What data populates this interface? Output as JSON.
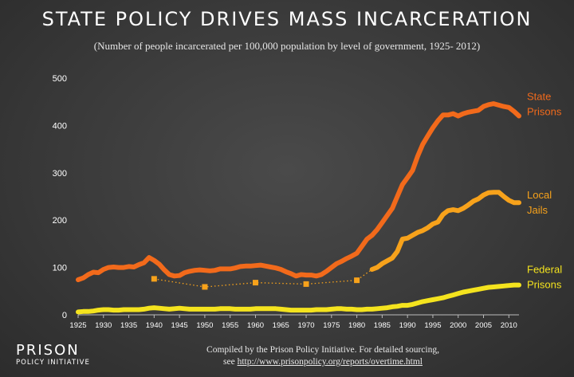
{
  "title": "STATE POLICY DRIVES MASS INCARCERATION",
  "subtitle": "(Number of people incarcerated per 100,000 population by level of government, 1925- 2012)",
  "footer": {
    "line1": "Compiled by the Prison Policy Initiative. For detailed sourcing,",
    "line2_prefix": "see ",
    "url": "http://www.prisonpolicy.org/reports/overtime.html"
  },
  "logo": {
    "line1": "PRISON",
    "line2": "POLICY INITIATIVE"
  },
  "colors": {
    "state": "#f26a1b",
    "local": "#f7a21b",
    "federal": "#f4e31e",
    "text": "#ffffff",
    "axis": "#bbbbbb"
  },
  "chart_data": {
    "type": "line",
    "xlim": [
      1925,
      2012
    ],
    "ylim": [
      0,
      500
    ],
    "grid": false,
    "y_ticks": [
      "0",
      "100",
      "200",
      "300",
      "400",
      "500"
    ],
    "y_tick_values": [
      0,
      100,
      200,
      300,
      400,
      500
    ],
    "x_ticks": [
      "1925",
      "1930",
      "1935",
      "1940",
      "1945",
      "1950",
      "1955",
      "1960",
      "1965",
      "1970",
      "1975",
      "1980",
      "1985",
      "1990",
      "1995",
      "2000",
      "2005",
      "2010"
    ],
    "x_tick_values": [
      1925,
      1930,
      1935,
      1940,
      1945,
      1950,
      1955,
      1960,
      1965,
      1970,
      1975,
      1980,
      1985,
      1990,
      1995,
      2000,
      2005,
      2010
    ],
    "series": [
      {
        "name": "State Prisons",
        "label_lines": [
          "State",
          "Prisons"
        ],
        "color_key": "state",
        "x": [
          1925,
          1926,
          1927,
          1928,
          1929,
          1930,
          1931,
          1932,
          1933,
          1934,
          1935,
          1936,
          1937,
          1938,
          1939,
          1940,
          1941,
          1942,
          1943,
          1944,
          1945,
          1946,
          1947,
          1948,
          1949,
          1950,
          1951,
          1952,
          1953,
          1954,
          1955,
          1956,
          1957,
          1958,
          1959,
          1960,
          1961,
          1962,
          1963,
          1964,
          1965,
          1966,
          1967,
          1968,
          1969,
          1970,
          1971,
          1972,
          1973,
          1974,
          1975,
          1976,
          1977,
          1978,
          1979,
          1980,
          1981,
          1982,
          1983,
          1984,
          1985,
          1986,
          1987,
          1988,
          1989,
          1990,
          1991,
          1992,
          1993,
          1994,
          1995,
          1996,
          1997,
          1998,
          1999,
          2000,
          2001,
          2002,
          2003,
          2004,
          2005,
          2006,
          2007,
          2008,
          2009,
          2010,
          2011,
          2012
        ],
        "y": [
          74,
          78,
          85,
          90,
          89,
          96,
          100,
          101,
          100,
          100,
          102,
          101,
          106,
          110,
          121,
          115,
          107,
          95,
          85,
          82,
          83,
          89,
          92,
          94,
          95,
          94,
          93,
          94,
          97,
          97,
          97,
          99,
          102,
          103,
          103,
          104,
          105,
          103,
          101,
          99,
          96,
          91,
          87,
          82,
          85,
          84,
          84,
          82,
          85,
          92,
          100,
          108,
          113,
          119,
          124,
          130,
          145,
          160,
          168,
          180,
          195,
          210,
          225,
          250,
          275,
          290,
          305,
          335,
          360,
          378,
          395,
          410,
          422,
          422,
          425,
          420,
          425,
          428,
          430,
          432,
          440,
          444,
          446,
          443,
          440,
          438,
          430,
          420
        ]
      },
      {
        "name": "Local Jails",
        "label_lines": [
          "Local",
          "Jails"
        ],
        "color_key": "local",
        "x": [
          1983,
          1984,
          1985,
          1986,
          1987,
          1988,
          1989,
          1990,
          1991,
          1992,
          1993,
          1994,
          1995,
          1996,
          1997,
          1998,
          1999,
          2000,
          2001,
          2002,
          2003,
          2004,
          2005,
          2006,
          2007,
          2008,
          2009,
          2010,
          2011,
          2012
        ],
        "y": [
          96,
          100,
          108,
          114,
          120,
          134,
          160,
          162,
          168,
          174,
          178,
          184,
          192,
          196,
          212,
          220,
          222,
          220,
          225,
          232,
          240,
          245,
          253,
          258,
          259,
          259,
          250,
          242,
          237,
          237
        ]
      },
      {
        "name": "Local Jails (earlier data points)",
        "label_lines": [],
        "color_key": "local",
        "dotted": true,
        "x": [
          1940,
          1950,
          1960,
          1970,
          1980,
          1983
        ],
        "y": [
          76,
          59,
          68,
          65,
          73,
          96
        ]
      },
      {
        "name": "Federal Prisons",
        "label_lines": [
          "Federal",
          "Prisons"
        ],
        "color_key": "federal",
        "x": [
          1925,
          1926,
          1927,
          1928,
          1929,
          1930,
          1931,
          1932,
          1933,
          1934,
          1935,
          1936,
          1937,
          1938,
          1939,
          1940,
          1941,
          1942,
          1943,
          1944,
          1945,
          1946,
          1947,
          1948,
          1949,
          1950,
          1951,
          1952,
          1953,
          1954,
          1955,
          1956,
          1957,
          1958,
          1959,
          1960,
          1961,
          1962,
          1963,
          1964,
          1965,
          1966,
          1967,
          1968,
          1969,
          1970,
          1971,
          1972,
          1973,
          1974,
          1975,
          1976,
          1977,
          1978,
          1979,
          1980,
          1981,
          1982,
          1983,
          1984,
          1985,
          1986,
          1987,
          1988,
          1989,
          1990,
          1991,
          1992,
          1993,
          1994,
          1995,
          1996,
          1997,
          1998,
          1999,
          2000,
          2001,
          2002,
          2003,
          2004,
          2005,
          2006,
          2007,
          2008,
          2009,
          2010,
          2011,
          2012
        ],
        "y": [
          6,
          7,
          7,
          8,
          10,
          11,
          11,
          10,
          10,
          11,
          11,
          11,
          11,
          12,
          14,
          15,
          14,
          13,
          12,
          13,
          14,
          13,
          12,
          12,
          12,
          12,
          12,
          12,
          13,
          13,
          13,
          12,
          12,
          12,
          12,
          13,
          13,
          13,
          13,
          13,
          12,
          11,
          10,
          10,
          10,
          10,
          10,
          11,
          11,
          11,
          12,
          13,
          13,
          12,
          12,
          11,
          11,
          12,
          12,
          13,
          14,
          15,
          17,
          18,
          20,
          20,
          22,
          25,
          28,
          30,
          32,
          34,
          36,
          39,
          42,
          45,
          48,
          50,
          52,
          54,
          56,
          58,
          59,
          60,
          61,
          62,
          63,
          63
        ]
      }
    ]
  }
}
